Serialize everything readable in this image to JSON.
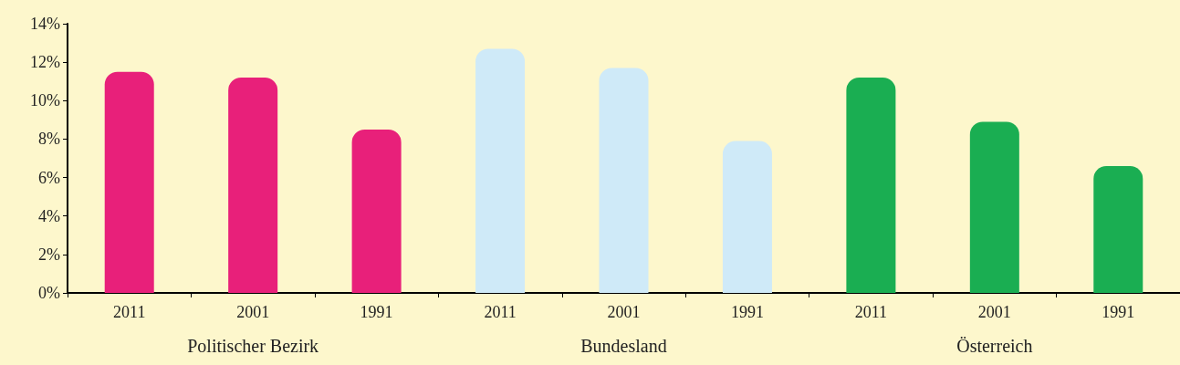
{
  "chart_data": {
    "type": "bar",
    "categories": [
      "2011",
      "2001",
      "1991",
      "2011",
      "2001",
      "1991",
      "2011",
      "2001",
      "1991"
    ],
    "values": [
      11.5,
      11.2,
      8.5,
      12.7,
      11.7,
      7.9,
      11.2,
      8.9,
      6.6
    ],
    "colors": [
      "#e8207a",
      "#e8207a",
      "#e8207a",
      "#cfeaf8",
      "#cfeaf8",
      "#cfeaf8",
      "#1aae52",
      "#1aae52",
      "#1aae52"
    ],
    "annotations": [
      "Politischer Bezirk",
      "Bundesland",
      "Österreich"
    ],
    "ylim": [
      0,
      14
    ],
    "yticks": [
      {
        "value": 0,
        "label": "0%"
      },
      {
        "value": 2,
        "label": "2%"
      },
      {
        "value": 4,
        "label": "4%"
      },
      {
        "value": 6,
        "label": "6%"
      },
      {
        "value": 8,
        "label": "8%"
      },
      {
        "value": 10,
        "label": "10%"
      },
      {
        "value": 12,
        "label": "12%"
      },
      {
        "value": 14,
        "label": "14%"
      }
    ],
    "grid": false
  }
}
